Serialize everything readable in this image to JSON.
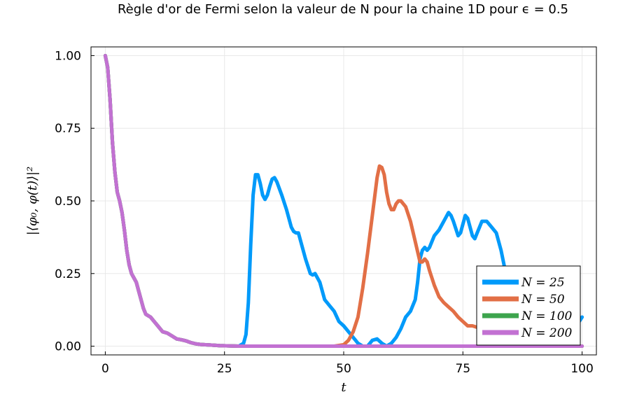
{
  "chart_data": {
    "type": "line",
    "title": "Règle d'or de Fermi selon la valeur de N pour la chaine 1D pour ϵ = 0.5",
    "xlabel": "t",
    "ylabel": "|⟨φ₀, φ(t)⟩|²",
    "xlim": [
      -3,
      103
    ],
    "ylim": [
      -0.03,
      1.03
    ],
    "xticks": [
      0,
      25,
      50,
      75,
      100
    ],
    "xtick_labels": [
      "0",
      "25",
      "50",
      "75",
      "100"
    ],
    "yticks": [
      0,
      0.25,
      0.5,
      0.75,
      1.0
    ],
    "ytick_labels": [
      "0.00",
      "0.25",
      "0.50",
      "0.75",
      "1.00"
    ],
    "grid": true,
    "legend_position": "bottom-right",
    "decay": [
      [
        0,
        1.0
      ],
      [
        0.5,
        0.96
      ],
      [
        1,
        0.85
      ],
      [
        1.5,
        0.7
      ],
      [
        2,
        0.6
      ],
      [
        2.5,
        0.53
      ],
      [
        3,
        0.5
      ],
      [
        3.5,
        0.46
      ],
      [
        4,
        0.4
      ],
      [
        4.5,
        0.33
      ],
      [
        5,
        0.28
      ],
      [
        5.5,
        0.25
      ],
      [
        6,
        0.235
      ],
      [
        6.5,
        0.22
      ],
      [
        7,
        0.19
      ],
      [
        7.5,
        0.16
      ],
      [
        8,
        0.13
      ],
      [
        8.5,
        0.11
      ],
      [
        9,
        0.105
      ],
      [
        9.5,
        0.1
      ],
      [
        10,
        0.09
      ],
      [
        11,
        0.07
      ],
      [
        12,
        0.05
      ],
      [
        13,
        0.045
      ],
      [
        14,
        0.035
      ],
      [
        15,
        0.025
      ],
      [
        16,
        0.022
      ],
      [
        17,
        0.018
      ],
      [
        18,
        0.012
      ],
      [
        19,
        0.008
      ],
      [
        20,
        0.006
      ],
      [
        22,
        0.004
      ],
      [
        24,
        0.002
      ],
      [
        26,
        0.001
      ],
      [
        28,
        0.0
      ]
    ],
    "series": [
      {
        "name": "N = 25",
        "legend_label": "N = 25",
        "color": "#009AFA",
        "points": [
          [
            28,
            0.0
          ],
          [
            29,
            0.01
          ],
          [
            29.5,
            0.04
          ],
          [
            30,
            0.15
          ],
          [
            30.5,
            0.35
          ],
          [
            31,
            0.52
          ],
          [
            31.5,
            0.59
          ],
          [
            32,
            0.59
          ],
          [
            32.5,
            0.56
          ],
          [
            33,
            0.52
          ],
          [
            33.5,
            0.505
          ],
          [
            34,
            0.52
          ],
          [
            34.5,
            0.55
          ],
          [
            35,
            0.575
          ],
          [
            35.5,
            0.58
          ],
          [
            36,
            0.565
          ],
          [
            37,
            0.52
          ],
          [
            38,
            0.47
          ],
          [
            39,
            0.41
          ],
          [
            39.5,
            0.395
          ],
          [
            40,
            0.39
          ],
          [
            40.5,
            0.39
          ],
          [
            41,
            0.36
          ],
          [
            42,
            0.3
          ],
          [
            43,
            0.25
          ],
          [
            43.5,
            0.245
          ],
          [
            44,
            0.25
          ],
          [
            45,
            0.22
          ],
          [
            46,
            0.16
          ],
          [
            47,
            0.14
          ],
          [
            48,
            0.12
          ],
          [
            49,
            0.085
          ],
          [
            50,
            0.07
          ],
          [
            51,
            0.05
          ],
          [
            52,
            0.03
          ],
          [
            53,
            0.01
          ],
          [
            54,
            0.0
          ],
          [
            55,
            0.0
          ],
          [
            56,
            0.02
          ],
          [
            57,
            0.025
          ],
          [
            58,
            0.01
          ],
          [
            59,
            0.0
          ],
          [
            60,
            0.01
          ],
          [
            61,
            0.03
          ],
          [
            62,
            0.06
          ],
          [
            63,
            0.1
          ],
          [
            64,
            0.12
          ],
          [
            65,
            0.16
          ],
          [
            65.5,
            0.22
          ],
          [
            66,
            0.3
          ],
          [
            66.5,
            0.33
          ],
          [
            67,
            0.34
          ],
          [
            67.5,
            0.33
          ],
          [
            68,
            0.34
          ],
          [
            69,
            0.38
          ],
          [
            70,
            0.4
          ],
          [
            71,
            0.43
          ],
          [
            72,
            0.46
          ],
          [
            72.5,
            0.45
          ],
          [
            73,
            0.43
          ],
          [
            74,
            0.38
          ],
          [
            74.5,
            0.39
          ],
          [
            75,
            0.42
          ],
          [
            75.5,
            0.45
          ],
          [
            76,
            0.44
          ],
          [
            76.5,
            0.41
          ],
          [
            77,
            0.38
          ],
          [
            77.5,
            0.37
          ],
          [
            78,
            0.39
          ],
          [
            79,
            0.43
          ],
          [
            80,
            0.43
          ],
          [
            81,
            0.41
          ],
          [
            82,
            0.39
          ],
          [
            83,
            0.33
          ],
          [
            84,
            0.25
          ],
          [
            85,
            0.18
          ],
          [
            86,
            0.12
          ],
          [
            87,
            0.08
          ],
          [
            88,
            0.05
          ],
          [
            89,
            0.03
          ],
          [
            90,
            0.02
          ],
          [
            92,
            0.01
          ],
          [
            94,
            0.01
          ],
          [
            96,
            0.02
          ],
          [
            98,
            0.05
          ],
          [
            100,
            0.1
          ]
        ]
      },
      {
        "name": "N = 50",
        "legend_label": "N = 50",
        "color": "#E26F46",
        "points": [
          [
            28,
            0.0
          ],
          [
            48,
            0.0
          ],
          [
            50,
            0.005
          ],
          [
            51,
            0.02
          ],
          [
            52,
            0.05
          ],
          [
            53,
            0.1
          ],
          [
            54,
            0.2
          ],
          [
            55,
            0.32
          ],
          [
            56,
            0.45
          ],
          [
            57,
            0.58
          ],
          [
            57.5,
            0.62
          ],
          [
            58,
            0.615
          ],
          [
            58.5,
            0.59
          ],
          [
            59,
            0.53
          ],
          [
            59.5,
            0.49
          ],
          [
            60,
            0.47
          ],
          [
            60.5,
            0.47
          ],
          [
            61,
            0.49
          ],
          [
            61.5,
            0.5
          ],
          [
            62,
            0.5
          ],
          [
            63,
            0.48
          ],
          [
            64,
            0.43
          ],
          [
            65,
            0.36
          ],
          [
            66,
            0.29
          ],
          [
            66.5,
            0.29
          ],
          [
            67,
            0.3
          ],
          [
            67.5,
            0.29
          ],
          [
            68,
            0.26
          ],
          [
            69,
            0.21
          ],
          [
            70,
            0.17
          ],
          [
            71,
            0.15
          ],
          [
            72,
            0.135
          ],
          [
            73,
            0.12
          ],
          [
            74,
            0.1
          ],
          [
            75,
            0.085
          ],
          [
            76,
            0.07
          ],
          [
            77,
            0.07
          ],
          [
            78,
            0.065
          ],
          [
            79,
            0.05
          ],
          [
            80,
            0.03
          ],
          [
            82,
            0.015
          ],
          [
            85,
            0.01
          ],
          [
            90,
            0.005
          ],
          [
            95,
            0.002
          ],
          [
            100,
            0.0
          ]
        ]
      },
      {
        "name": "N = 100",
        "legend_label": "N = 100",
        "color": "#3DA44D",
        "points": [
          [
            28,
            0.0
          ],
          [
            100,
            0.0
          ]
        ]
      },
      {
        "name": "N = 200",
        "legend_label": "N = 200",
        "color": "#C271D2",
        "points": [
          [
            28,
            0.0
          ],
          [
            100,
            0.0
          ]
        ]
      }
    ]
  }
}
